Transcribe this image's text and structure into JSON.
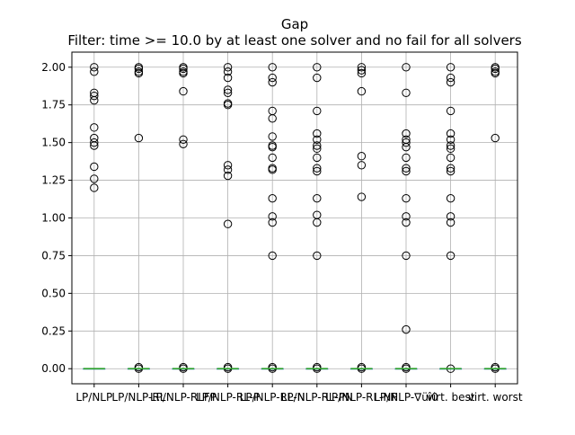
{
  "chart_data": {
    "type": "box",
    "title": "Gap",
    "subtitle": "Filter: time >= 10.0 by at least one solver and no fail for all solvers",
    "xlabel": "",
    "ylabel": "",
    "ylim": [
      -0.1,
      2.1
    ],
    "yticks": [
      0.0,
      0.25,
      0.5,
      0.75,
      1.0,
      1.25,
      1.5,
      1.75,
      2.0
    ],
    "ytick_labels": [
      "0.00",
      "0.25",
      "0.50",
      "0.75",
      "1.00",
      "1.25",
      "1.50",
      "1.75",
      "2.00"
    ],
    "grid": true,
    "legend": false,
    "colors": {
      "median": "#2ca02c",
      "whisker": "#1f77b4",
      "flier": "#000000",
      "grid": "#b0b0b0"
    },
    "categories": [
      "LP/NLP",
      "LP/NLP-RL",
      "LP/NLP-RLFP",
      "LP/NLP-RL-P",
      "LP/NLP-RL-N",
      "LP/NLP-RL-PN",
      "LP/NLP-RL-NP",
      "LP/NLP-∇üî0",
      "virt. best",
      "virt. worst"
    ],
    "series": [
      {
        "median": 0.0,
        "q1": 0.0,
        "q3": 0.0,
        "whisker_low": 0.0,
        "whisker_high": 0.0,
        "outliers": [
          2.0,
          1.97,
          1.83,
          1.81,
          1.78,
          1.6,
          1.53,
          1.5,
          1.48,
          1.34,
          1.26,
          1.2
        ]
      },
      {
        "median": 0.0,
        "q1": 0.0,
        "q3": 0.0,
        "whisker_low": 0.0,
        "whisker_high": 0.0,
        "outliers": [
          2.0,
          1.99,
          1.97,
          1.96,
          1.53,
          0.01,
          0.0
        ]
      },
      {
        "median": 0.0,
        "q1": 0.0,
        "q3": 0.0,
        "whisker_low": 0.0,
        "whisker_high": 0.0,
        "outliers": [
          2.0,
          1.99,
          1.97,
          1.96,
          1.84,
          1.52,
          1.49,
          0.01,
          0.0
        ]
      },
      {
        "median": 0.0,
        "q1": 0.0,
        "q3": 0.0,
        "whisker_low": 0.0,
        "whisker_high": 0.0,
        "outliers": [
          2.0,
          1.97,
          1.93,
          1.85,
          1.83,
          1.76,
          1.75,
          1.35,
          1.32,
          1.28,
          0.96,
          0.01,
          0.0
        ]
      },
      {
        "median": 0.0,
        "q1": 0.0,
        "q3": 0.0,
        "whisker_low": 0.0,
        "whisker_high": 0.0,
        "outliers": [
          2.0,
          1.93,
          1.9,
          1.71,
          1.66,
          1.54,
          1.48,
          1.47,
          1.4,
          1.33,
          1.32,
          1.13,
          1.01,
          0.97,
          0.75,
          0.01,
          0.0
        ]
      },
      {
        "median": 0.0,
        "q1": 0.0,
        "q3": 0.0,
        "whisker_low": 0.0,
        "whisker_high": 0.0,
        "outliers": [
          2.0,
          1.93,
          1.71,
          1.56,
          1.52,
          1.48,
          1.46,
          1.4,
          1.33,
          1.31,
          1.13,
          1.02,
          0.97,
          0.75,
          0.01,
          0.0
        ]
      },
      {
        "median": 0.0,
        "q1": 0.0,
        "q3": 0.0,
        "whisker_low": 0.0,
        "whisker_high": 0.0,
        "outliers": [
          2.0,
          1.98,
          1.96,
          1.84,
          1.41,
          1.35,
          1.14,
          0.01,
          0.0
        ]
      },
      {
        "median": 0.0,
        "q1": 0.0,
        "q3": 0.0,
        "whisker_low": 0.0,
        "whisker_high": 0.0,
        "outliers": [
          2.0,
          1.83,
          1.56,
          1.52,
          1.5,
          1.47,
          1.4,
          1.33,
          1.31,
          1.13,
          1.01,
          0.97,
          0.75,
          0.26,
          0.01,
          0.0
        ]
      },
      {
        "median": 0.0,
        "q1": 0.0,
        "q3": 0.0,
        "whisker_low": 0.0,
        "whisker_high": 0.0,
        "outliers": [
          2.0,
          1.93,
          1.9,
          1.71,
          1.56,
          1.52,
          1.48,
          1.46,
          1.4,
          1.33,
          1.31,
          1.13,
          1.01,
          0.97,
          0.75,
          0.0
        ]
      },
      {
        "median": 0.0,
        "q1": 0.0,
        "q3": 0.0,
        "whisker_low": 0.0,
        "whisker_high": 0.0,
        "outliers": [
          2.0,
          1.99,
          1.97,
          1.96,
          1.53,
          0.01,
          0.0
        ]
      }
    ]
  }
}
